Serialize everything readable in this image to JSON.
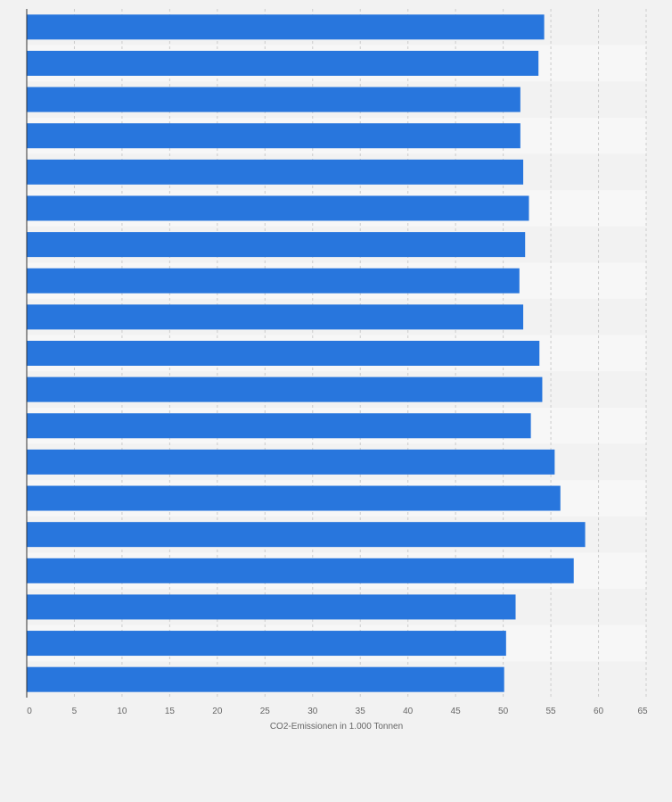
{
  "colors": {
    "bar": "#2876dd",
    "band_light": "#f7f7f7",
    "band_dark": "#f2f2f2",
    "grid": "#cccccc",
    "axis": "#333333",
    "background": "#f2f2f2"
  },
  "chart_data": {
    "type": "bar",
    "orientation": "horizontal",
    "title": "",
    "xlabel": "CO2-Emissionen in 1.000 Tonnen",
    "ylabel": "",
    "xlim": [
      0,
      65
    ],
    "xticks": [
      "0",
      "5",
      "10",
      "15",
      "20",
      "25",
      "30",
      "35",
      "40",
      "45",
      "50",
      "55",
      "60",
      "65"
    ],
    "grid": "vertical dashed",
    "legend": "none",
    "categories": [
      "",
      "",
      "",
      "",
      "",
      "",
      "",
      "",
      "",
      "",
      "",
      "",
      "",
      "",
      "",
      "",
      "",
      "",
      ""
    ],
    "values": [
      54.3,
      53.7,
      51.8,
      51.8,
      52.1,
      52.7,
      52.3,
      51.7,
      52.1,
      53.8,
      54.1,
      52.9,
      55.4,
      56.0,
      58.6,
      57.4,
      51.3,
      50.3,
      50.1
    ]
  }
}
